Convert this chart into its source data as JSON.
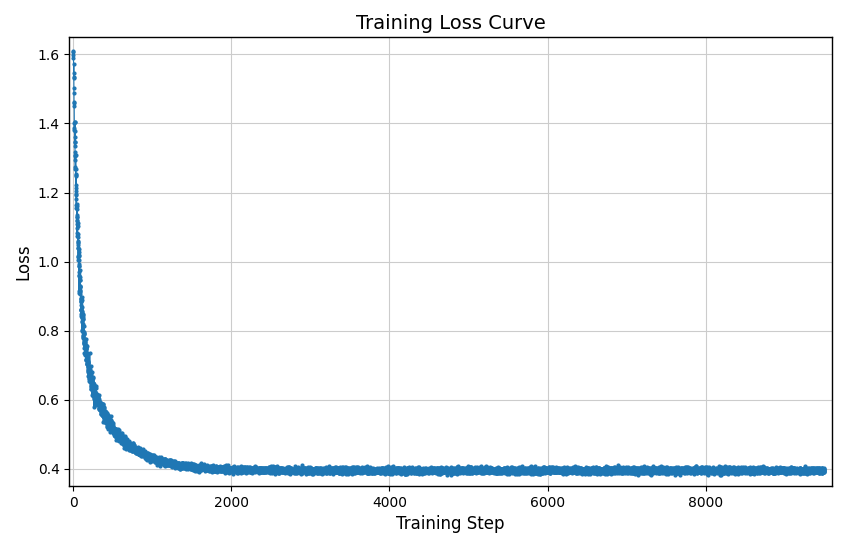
{
  "title": "Training Loss Curve",
  "xlabel": "Training Step",
  "ylabel": "Loss",
  "line_color": "#1f77b4",
  "line_width": 0.8,
  "marker": "o",
  "marker_size": 2.0,
  "xlim": [
    -50,
    9600
  ],
  "ylim": [
    0.35,
    1.65
  ],
  "yticks": [
    0.4,
    0.6,
    0.8,
    1.0,
    1.2,
    1.4,
    1.6
  ],
  "xticks": [
    0,
    2000,
    4000,
    6000,
    8000
  ],
  "grid": true,
  "total_steps": 9500,
  "initial_loss": 1.608,
  "final_loss": 0.395,
  "background_color": "#ffffff",
  "title_fontsize": 14,
  "axis_fontsize": 12
}
